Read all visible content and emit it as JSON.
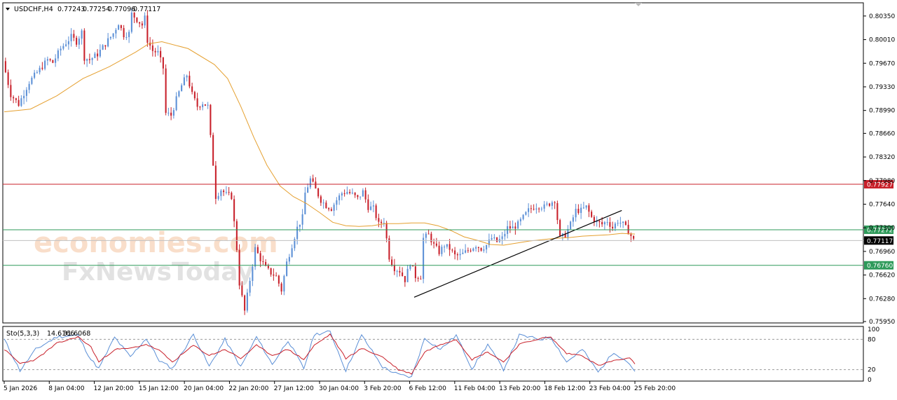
{
  "header": {
    "symbol": "USDCHF,H4",
    "open": "0.77243",
    "high": "0.77254",
    "low": "0.77096",
    "close": "0.77117"
  },
  "watermark": {
    "line1": "economies.com",
    "line2": "FxNewsToday"
  },
  "colors": {
    "bull": "#5b8fd6",
    "bear": "#c8202a",
    "ma": "#e5a030",
    "resistance": "#c8202a",
    "support": "#2e9a5a",
    "price_label": "#000000"
  },
  "chart_data": [
    {
      "type": "candlestick",
      "name": "price",
      "title": "USDCHF,H4",
      "ylim": [
        0.7595,
        0.8052
      ],
      "y_ticks": [
        "0.80350",
        "0.80010",
        "0.79670",
        "0.79330",
        "0.78990",
        "0.78660",
        "0.78320",
        "0.77980",
        "0.77640",
        "0.77300",
        "0.76960",
        "0.76620",
        "0.76280",
        "0.75950"
      ],
      "x_ticks": [
        "5 Jan 2026",
        "8 Jan 04:00",
        "12 Jan 20:00",
        "15 Jan 12:00",
        "20 Jan 04:00",
        "22 Jan 20:00",
        "27 Jan 12:00",
        "30 Jan 04:00",
        "3 Feb 20:00",
        "6 Feb 12:00",
        "11 Feb 04:00",
        "13 Feb 20:00",
        "18 Feb 12:00",
        "23 Feb 04:00",
        "25 Feb 20:00"
      ],
      "close_path": [
        [
          0,
          0.797
        ],
        [
          3,
          0.7922
        ],
        [
          6,
          0.7908
        ],
        [
          10,
          0.794
        ],
        [
          14,
          0.7958
        ],
        [
          17,
          0.7972
        ],
        [
          19,
          0.7968
        ],
        [
          22,
          0.7988
        ],
        [
          26,
          0.8005
        ],
        [
          28,
          0.7998
        ],
        [
          30,
          0.8012
        ],
        [
          31,
          0.7975
        ],
        [
          33,
          0.7972
        ],
        [
          36,
          0.798
        ],
        [
          39,
          0.7995
        ],
        [
          42,
          0.801
        ],
        [
          44,
          0.8025
        ],
        [
          46,
          0.8008
        ],
        [
          48,
          0.801
        ],
        [
          49,
          0.8038
        ],
        [
          51,
          0.803
        ],
        [
          53,
          0.8022
        ],
        [
          54,
          0.8032
        ],
        [
          55,
          0.8
        ],
        [
          57,
          0.7985
        ],
        [
          59,
          0.7982
        ],
        [
          61,
          0.796
        ],
        [
          62,
          0.7895
        ],
        [
          64,
          0.7892
        ],
        [
          66,
          0.7915
        ],
        [
          68,
          0.7935
        ],
        [
          70,
          0.795
        ],
        [
          72,
          0.7922
        ],
        [
          74,
          0.7905
        ],
        [
          76,
          0.791
        ],
        [
          78,
          0.7905
        ],
        [
          79,
          0.786
        ],
        [
          80,
          0.7822
        ],
        [
          81,
          0.7775
        ],
        [
          83,
          0.7785
        ],
        [
          85,
          0.7778
        ],
        [
          87,
          0.7775
        ],
        [
          89,
          0.77
        ],
        [
          90,
          0.765
        ],
        [
          92,
          0.761
        ],
        [
          94,
          0.7655
        ],
        [
          96,
          0.77
        ],
        [
          98,
          0.7685
        ],
        [
          100,
          0.7672
        ],
        [
          102,
          0.7665
        ],
        [
          104,
          0.766
        ],
        [
          106,
          0.764
        ],
        [
          108,
          0.768
        ],
        [
          110,
          0.7705
        ],
        [
          112,
          0.773
        ],
        [
          114,
          0.7745
        ],
        [
          115,
          0.778
        ],
        [
          117,
          0.78
        ],
        [
          119,
          0.7785
        ],
        [
          121,
          0.777
        ],
        [
          123,
          0.7762
        ],
        [
          125,
          0.7758
        ],
        [
          127,
          0.777
        ],
        [
          129,
          0.778
        ],
        [
          131,
          0.7782
        ],
        [
          133,
          0.7778
        ],
        [
          135,
          0.7772
        ],
        [
          137,
          0.7782
        ],
        [
          139,
          0.776
        ],
        [
          141,
          0.7758
        ],
        [
          143,
          0.7735
        ],
        [
          145,
          0.774
        ],
        [
          147,
          0.7688
        ],
        [
          149,
          0.7672
        ],
        [
          151,
          0.7668
        ],
        [
          153,
          0.7655
        ],
        [
          155,
          0.768
        ],
        [
          157,
          0.766
        ],
        [
          159,
          0.766
        ],
        [
          160,
          0.7715
        ],
        [
          162,
          0.772
        ],
        [
          164,
          0.7705
        ],
        [
          166,
          0.7695
        ],
        [
          168,
          0.7705
        ],
        [
          170,
          0.77
        ],
        [
          172,
          0.769
        ],
        [
          174,
          0.769
        ],
        [
          176,
          0.7695
        ],
        [
          178,
          0.77
        ],
        [
          180,
          0.7705
        ],
        [
          182,
          0.77
        ],
        [
          184,
          0.7705
        ],
        [
          186,
          0.7715
        ],
        [
          188,
          0.771
        ],
        [
          190,
          0.7715
        ],
        [
          192,
          0.773
        ],
        [
          194,
          0.773
        ],
        [
          196,
          0.7735
        ],
        [
          198,
          0.7745
        ],
        [
          200,
          0.7755
        ],
        [
          202,
          0.776
        ],
        [
          204,
          0.7762
        ],
        [
          206,
          0.776
        ],
        [
          208,
          0.7765
        ],
        [
          210,
          0.777
        ],
        [
          212,
          0.7715
        ],
        [
          214,
          0.772
        ],
        [
          216,
          0.7735
        ],
        [
          218,
          0.7755
        ],
        [
          220,
          0.7755
        ],
        [
          222,
          0.776
        ],
        [
          224,
          0.7745
        ],
        [
          226,
          0.7738
        ],
        [
          228,
          0.7735
        ],
        [
          230,
          0.774
        ],
        [
          232,
          0.773
        ],
        [
          234,
          0.774
        ],
        [
          236,
          0.7735
        ],
        [
          238,
          0.7725
        ],
        [
          240,
          0.7712
        ]
      ],
      "ma_path": [
        [
          0,
          0.7897
        ],
        [
          10,
          0.7901
        ],
        [
          20,
          0.792
        ],
        [
          30,
          0.7945
        ],
        [
          40,
          0.7962
        ],
        [
          50,
          0.7983
        ],
        [
          55,
          0.7995
        ],
        [
          60,
          0.7998
        ],
        [
          70,
          0.7988
        ],
        [
          80,
          0.7965
        ],
        [
          85,
          0.7945
        ],
        [
          90,
          0.7905
        ],
        [
          95,
          0.786
        ],
        [
          100,
          0.782
        ],
        [
          105,
          0.779
        ],
        [
          110,
          0.7775
        ],
        [
          115,
          0.7765
        ],
        [
          120,
          0.7752
        ],
        [
          125,
          0.7738
        ],
        [
          130,
          0.7733
        ],
        [
          135,
          0.7732
        ],
        [
          140,
          0.7733
        ],
        [
          145,
          0.7736
        ],
        [
          150,
          0.7736
        ],
        [
          155,
          0.7737
        ],
        [
          160,
          0.7737
        ],
        [
          165,
          0.7733
        ],
        [
          170,
          0.7726
        ],
        [
          175,
          0.7717
        ],
        [
          180,
          0.7712
        ],
        [
          185,
          0.7706
        ],
        [
          190,
          0.7705
        ],
        [
          195,
          0.7708
        ],
        [
          200,
          0.7711
        ],
        [
          205,
          0.7713
        ],
        [
          210,
          0.7715
        ],
        [
          215,
          0.7716
        ],
        [
          220,
          0.7718
        ],
        [
          225,
          0.7719
        ],
        [
          230,
          0.772
        ],
        [
          235,
          0.7722
        ],
        [
          240,
          0.7721
        ]
      ],
      "trendline": [
        [
          156,
          0.763
        ],
        [
          235,
          0.7755
        ]
      ],
      "levels": [
        {
          "label": "0.77927",
          "value": 0.77927,
          "kind": "resistance"
        },
        {
          "label": "0.77272",
          "value": 0.77272,
          "kind": "support"
        },
        {
          "label": "0.77117",
          "value": 0.77117,
          "kind": "price"
        },
        {
          "label": "0.76760",
          "value": 0.7676,
          "kind": "support"
        }
      ]
    },
    {
      "type": "line",
      "name": "stochastic",
      "title": "Sto(5,3,3) 14.6166 31.6068",
      "label": "Sto(5,3,3)",
      "main_value": "14.6166",
      "signal_value": "31.6068",
      "ylim": [
        0,
        100
      ],
      "y_ticks": [
        "100",
        "80",
        "20",
        "0"
      ],
      "levels": [
        80,
        20
      ],
      "main": [
        [
          0,
          80
        ],
        [
          6,
          18
        ],
        [
          12,
          60
        ],
        [
          20,
          85
        ],
        [
          28,
          88
        ],
        [
          33,
          40
        ],
        [
          36,
          22
        ],
        [
          42,
          84
        ],
        [
          48,
          45
        ],
        [
          54,
          82
        ],
        [
          59,
          38
        ],
        [
          64,
          22
        ],
        [
          72,
          90
        ],
        [
          78,
          26
        ],
        [
          84,
          80
        ],
        [
          90,
          25
        ],
        [
          96,
          85
        ],
        [
          102,
          30
        ],
        [
          108,
          78
        ],
        [
          114,
          22
        ],
        [
          118,
          90
        ],
        [
          124,
          95
        ],
        [
          130,
          18
        ],
        [
          136,
          88
        ],
        [
          144,
          25
        ],
        [
          150,
          10
        ],
        [
          155,
          5
        ],
        [
          160,
          82
        ],
        [
          166,
          60
        ],
        [
          172,
          88
        ],
        [
          178,
          22
        ],
        [
          184,
          70
        ],
        [
          190,
          20
        ],
        [
          196,
          88
        ],
        [
          204,
          80
        ],
        [
          208,
          85
        ],
        [
          214,
          35
        ],
        [
          220,
          60
        ],
        [
          226,
          15
        ],
        [
          232,
          55
        ],
        [
          238,
          32
        ],
        [
          240,
          14
        ]
      ],
      "signal": [
        [
          0,
          60
        ],
        [
          6,
          32
        ],
        [
          12,
          40
        ],
        [
          20,
          72
        ],
        [
          28,
          85
        ],
        [
          33,
          65
        ],
        [
          36,
          35
        ],
        [
          42,
          60
        ],
        [
          48,
          62
        ],
        [
          54,
          70
        ],
        [
          59,
          58
        ],
        [
          64,
          35
        ],
        [
          72,
          68
        ],
        [
          78,
          48
        ],
        [
          84,
          60
        ],
        [
          90,
          42
        ],
        [
          96,
          68
        ],
        [
          102,
          48
        ],
        [
          108,
          60
        ],
        [
          114,
          40
        ],
        [
          118,
          68
        ],
        [
          124,
          90
        ],
        [
          130,
          42
        ],
        [
          136,
          62
        ],
        [
          144,
          45
        ],
        [
          150,
          20
        ],
        [
          155,
          12
        ],
        [
          160,
          55
        ],
        [
          166,
          70
        ],
        [
          172,
          80
        ],
        [
          178,
          40
        ],
        [
          184,
          55
        ],
        [
          190,
          35
        ],
        [
          196,
          70
        ],
        [
          204,
          82
        ],
        [
          208,
          84
        ],
        [
          214,
          52
        ],
        [
          220,
          48
        ],
        [
          226,
          28
        ],
        [
          232,
          38
        ],
        [
          238,
          42
        ],
        [
          240,
          32
        ]
      ]
    }
  ]
}
